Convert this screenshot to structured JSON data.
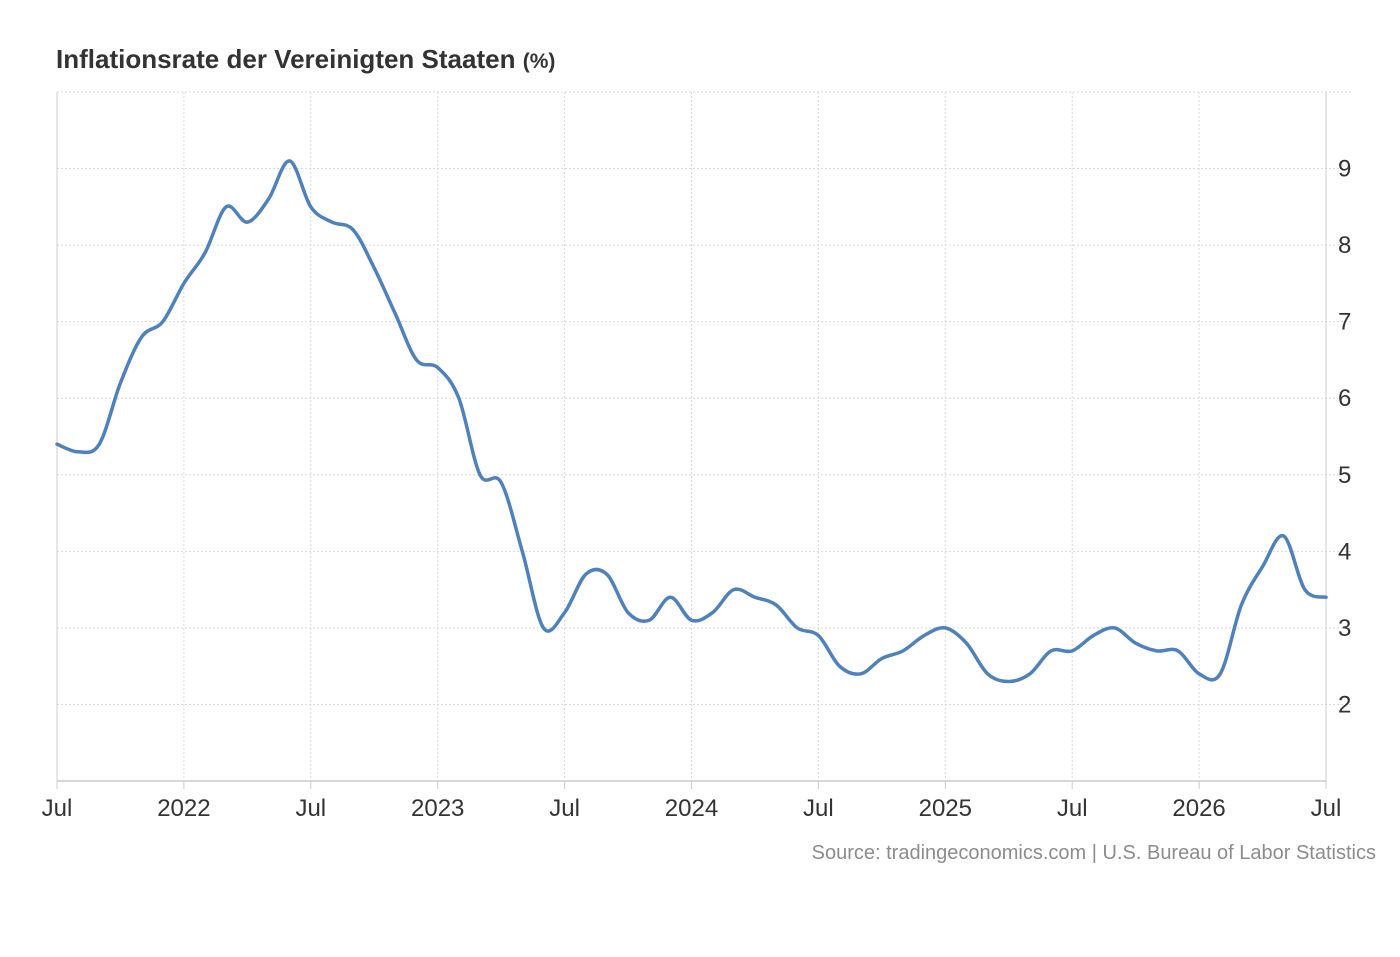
{
  "chart_data": {
    "type": "line",
    "title": "Inflationsrate der Vereinigten Staaten",
    "unit": "(%)",
    "xlabel": "",
    "ylabel": "",
    "source": "Source: tradingeconomics.com | U.S. Bureau of Labor Statistics",
    "x_ticks": [
      "Jul",
      "2022",
      "Jul",
      "2023",
      "Jul",
      "2024",
      "Jul",
      "2025",
      "Jul",
      "2026",
      "Jul"
    ],
    "y_ticks": [
      2,
      3,
      4,
      5,
      6,
      7,
      8,
      9
    ],
    "xlim": [
      "2021-07",
      "2026-07"
    ],
    "ylim": [
      1,
      10
    ],
    "y_axis_position": "right",
    "grid": true,
    "legend": "none",
    "colors": {
      "line": "#4f81bd",
      "grid": "#d9d9d9",
      "text": "#333333",
      "source": "#8c8c8c"
    },
    "series": [
      {
        "x": [
          "2021-07",
          "2021-08",
          "2021-09",
          "2021-10",
          "2021-11",
          "2021-12",
          "2022-01",
          "2022-02",
          "2022-03",
          "2022-04",
          "2022-05",
          "2022-06",
          "2022-07",
          "2022-08",
          "2022-09",
          "2022-10",
          "2022-11",
          "2022-12",
          "2023-01",
          "2023-02",
          "2023-03",
          "2023-04",
          "2023-05",
          "2023-06",
          "2023-07",
          "2023-08",
          "2023-09",
          "2023-10",
          "2023-11",
          "2023-12",
          "2024-01",
          "2024-02",
          "2024-03",
          "2024-04",
          "2024-05",
          "2024-06",
          "2024-07",
          "2024-08",
          "2024-09",
          "2024-10",
          "2024-11",
          "2024-12",
          "2025-01",
          "2025-02",
          "2025-03",
          "2025-04",
          "2025-05",
          "2025-06",
          "2025-07",
          "2025-08",
          "2025-09",
          "2025-10",
          "2025-11",
          "2025-12",
          "2026-01",
          "2026-02",
          "2026-03",
          "2026-04",
          "2026-05",
          "2026-06",
          "2026-07"
        ],
        "values": [
          5.4,
          5.3,
          5.4,
          6.2,
          6.8,
          7.0,
          7.5,
          7.9,
          8.5,
          8.3,
          8.6,
          9.1,
          8.5,
          8.3,
          8.2,
          7.7,
          7.1,
          6.5,
          6.4,
          6.0,
          5.0,
          4.9,
          4.0,
          3.0,
          3.2,
          3.7,
          3.7,
          3.2,
          3.1,
          3.4,
          3.1,
          3.2,
          3.5,
          3.4,
          3.3,
          3.0,
          2.9,
          2.5,
          2.4,
          2.6,
          2.7,
          2.9,
          3.0,
          2.8,
          2.4,
          2.3,
          2.4,
          2.7,
          2.7,
          2.9,
          3.0,
          2.8,
          2.7,
          2.7,
          2.4,
          2.4,
          3.3,
          3.8,
          4.2,
          3.5,
          3.4
        ]
      }
    ]
  }
}
